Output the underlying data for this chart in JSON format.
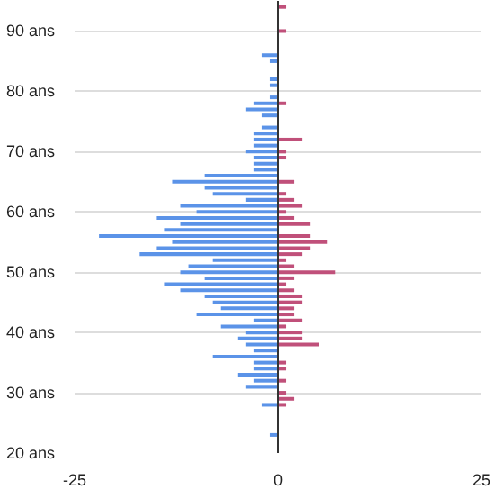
{
  "chart_data": {
    "type": "bar",
    "orientation": "horizontal",
    "x": [
      23,
      24,
      25,
      26,
      27,
      28,
      29,
      30,
      31,
      32,
      33,
      34,
      35,
      36,
      37,
      38,
      39,
      40,
      41,
      42,
      43,
      44,
      45,
      46,
      47,
      48,
      49,
      50,
      51,
      52,
      53,
      54,
      55,
      56,
      57,
      58,
      59,
      60,
      61,
      62,
      63,
      64,
      65,
      66,
      67,
      68,
      69,
      70,
      71,
      72,
      73,
      74,
      75,
      76,
      77,
      78,
      79,
      80,
      81,
      82,
      83,
      84,
      85,
      86,
      87,
      88,
      89,
      90,
      91,
      92,
      93,
      94
    ],
    "series": [
      {
        "color": "#5b93e8",
        "values": [
          -1,
          null,
          null,
          null,
          null,
          -2,
          null,
          null,
          -4,
          -3,
          -5,
          -3,
          -3,
          -8,
          -3,
          -4,
          -5,
          -4,
          -7,
          -3,
          -10,
          -7,
          -8,
          -9,
          -12,
          -14,
          -9,
          -12,
          -11,
          -8,
          -17,
          -15,
          -13,
          -22,
          -14,
          -12,
          -15,
          -10,
          -12,
          -4,
          -8,
          -9,
          -13,
          -9,
          -3,
          -3,
          -3,
          -4,
          -3,
          -3,
          -3,
          -2,
          null,
          -2,
          -4,
          -3,
          -1,
          null,
          -1,
          -1,
          null,
          null,
          -1,
          -2,
          null,
          null,
          null,
          null,
          null,
          null,
          null,
          null
        ]
      },
      {
        "color": "#c0507a",
        "values": [
          null,
          null,
          null,
          null,
          null,
          1,
          2,
          1,
          null,
          1,
          null,
          1,
          1,
          null,
          null,
          5,
          3,
          3,
          1,
          3,
          2,
          2,
          3,
          3,
          2,
          1,
          2,
          7,
          2,
          1,
          3,
          4,
          6,
          4,
          null,
          4,
          2,
          1,
          3,
          2,
          1,
          null,
          2,
          null,
          null,
          null,
          1,
          1,
          null,
          3,
          null,
          null,
          null,
          null,
          null,
          1,
          null,
          null,
          null,
          null,
          null,
          null,
          null,
          null,
          null,
          null,
          null,
          1,
          null,
          null,
          null,
          1
        ]
      }
    ],
    "xlim": [
      -25,
      25
    ],
    "xticks": [
      -25,
      0,
      25
    ],
    "ylim": [
      20,
      95
    ],
    "yticks": [
      {
        "value": 20,
        "label": "20 ans"
      },
      {
        "value": 30,
        "label": "30 ans"
      },
      {
        "value": 40,
        "label": "40 ans"
      },
      {
        "value": 50,
        "label": "50 ans"
      },
      {
        "value": 60,
        "label": "60 ans"
      },
      {
        "value": 70,
        "label": "70 ans"
      },
      {
        "value": 80,
        "label": "80 ans"
      },
      {
        "value": 90,
        "label": "90 ans"
      }
    ],
    "ref_lines": [
      {
        "axis": "x",
        "value": 0,
        "color": "#333333"
      }
    ],
    "grid": true
  }
}
